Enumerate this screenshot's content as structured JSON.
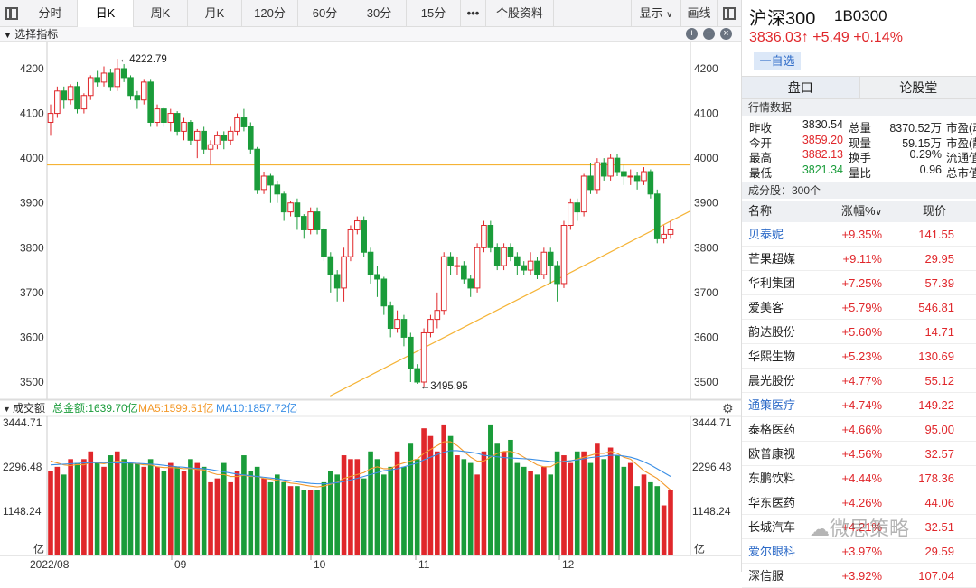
{
  "toolbar": {
    "tabs": [
      "分时",
      "日K",
      "周K",
      "月K",
      "120分",
      "60分",
      "30分",
      "15分"
    ],
    "more": "•••",
    "profile": "个股资料",
    "display": "显示",
    "draw": "画线"
  },
  "indicator_bar": {
    "label": "选择指标",
    "plus": "+",
    "minus": "−",
    "close": "×"
  },
  "volume_bar": {
    "label": "成交额",
    "total": "总金额:1639.70亿",
    "ma5": "MA5:1599.51亿",
    "ma10": "MA10:1857.72亿"
  },
  "chart_data": {
    "type": "candlestick",
    "price_axis": {
      "ticks": [
        "4200",
        "4100",
        "4000",
        "3900",
        "3800",
        "3700",
        "3600",
        "3500"
      ],
      "ylim": [
        3470,
        4250
      ]
    },
    "volume_axis": {
      "ticks": [
        "3444.71",
        "2296.48",
        "1148.24"
      ],
      "unit": "亿",
      "ylim": [
        0,
        3444.71
      ]
    },
    "x_ticks": [
      "2022/08",
      "09",
      "10",
      "11",
      "12"
    ],
    "annotations": {
      "high": "←4222.79",
      "low": "←3495.95"
    },
    "candles": [
      [
        4080,
        4100,
        4050,
        4120
      ],
      [
        4100,
        4150,
        4090,
        4160
      ],
      [
        4150,
        4130,
        4110,
        4160
      ],
      [
        4130,
        4160,
        4120,
        4165
      ],
      [
        4160,
        4110,
        4100,
        4170
      ],
      [
        4110,
        4140,
        4100,
        4145
      ],
      [
        4140,
        4180,
        4130,
        4185
      ],
      [
        4180,
        4170,
        4160,
        4195
      ],
      [
        4170,
        4190,
        4160,
        4205
      ],
      [
        4190,
        4160,
        4150,
        4200
      ],
      [
        4160,
        4200,
        4150,
        4222
      ],
      [
        4200,
        4180,
        4170,
        4210
      ],
      [
        4180,
        4140,
        4130,
        4185
      ],
      [
        4140,
        4130,
        4110,
        4150
      ],
      [
        4130,
        4170,
        4120,
        4175
      ],
      [
        4170,
        4080,
        4070,
        4175
      ],
      [
        4080,
        4110,
        4070,
        4120
      ],
      [
        4110,
        4080,
        4070,
        4115
      ],
      [
        4080,
        4100,
        4060,
        4110
      ],
      [
        4100,
        4060,
        4050,
        4105
      ],
      [
        4060,
        4080,
        4040,
        4090
      ],
      [
        4080,
        4040,
        4030,
        4085
      ],
      [
        4040,
        4060,
        4000,
        4065
      ],
      [
        4060,
        4020,
        4010,
        4070
      ],
      [
        4020,
        4030,
        3985,
        4040
      ],
      [
        4030,
        4050,
        4020,
        4060
      ],
      [
        4050,
        4040,
        4020,
        4060
      ],
      [
        4040,
        4060,
        4030,
        4070
      ],
      [
        4060,
        4090,
        4050,
        4100
      ],
      [
        4090,
        4070,
        4060,
        4110
      ],
      [
        4070,
        4020,
        4010,
        4080
      ],
      [
        4020,
        3930,
        3920,
        4025
      ],
      [
        3930,
        3960,
        3920,
        3970
      ],
      [
        3960,
        3940,
        3900,
        3965
      ],
      [
        3940,
        3920,
        3900,
        3950
      ],
      [
        3920,
        3880,
        3860,
        3925
      ],
      [
        3880,
        3900,
        3870,
        3905
      ],
      [
        3900,
        3870,
        3840,
        3910
      ],
      [
        3870,
        3840,
        3820,
        3875
      ],
      [
        3840,
        3880,
        3830,
        3890
      ],
      [
        3880,
        3840,
        3830,
        3890
      ],
      [
        3840,
        3780,
        3770,
        3845
      ],
      [
        3780,
        3740,
        3700,
        3790
      ],
      [
        3740,
        3710,
        3680,
        3750
      ],
      [
        3710,
        3780,
        3680,
        3800
      ],
      [
        3780,
        3840,
        3770,
        3850
      ],
      [
        3840,
        3860,
        3830,
        3870
      ],
      [
        3860,
        3790,
        3780,
        3870
      ],
      [
        3790,
        3740,
        3720,
        3800
      ],
      [
        3740,
        3730,
        3690,
        3760
      ],
      [
        3730,
        3670,
        3650,
        3735
      ],
      [
        3670,
        3620,
        3600,
        3680
      ],
      [
        3620,
        3640,
        3610,
        3660
      ],
      [
        3640,
        3600,
        3580,
        3650
      ],
      [
        3600,
        3530,
        3500,
        3610
      ],
      [
        3530,
        3500,
        3496,
        3540
      ],
      [
        3500,
        3610,
        3490,
        3620
      ],
      [
        3610,
        3640,
        3600,
        3650
      ],
      [
        3640,
        3660,
        3620,
        3700
      ],
      [
        3660,
        3780,
        3650,
        3790
      ],
      [
        3780,
        3760,
        3740,
        3790
      ],
      [
        3760,
        3760,
        3740,
        3780
      ],
      [
        3760,
        3730,
        3720,
        3770
      ],
      [
        3730,
        3710,
        3690,
        3740
      ],
      [
        3710,
        3800,
        3700,
        3810
      ],
      [
        3800,
        3850,
        3790,
        3860
      ],
      [
        3850,
        3800,
        3790,
        3860
      ],
      [
        3800,
        3760,
        3750,
        3810
      ],
      [
        3760,
        3800,
        3750,
        3810
      ],
      [
        3800,
        3780,
        3770,
        3810
      ],
      [
        3780,
        3760,
        3740,
        3790
      ],
      [
        3760,
        3750,
        3740,
        3770
      ],
      [
        3750,
        3770,
        3740,
        3790
      ],
      [
        3770,
        3740,
        3730,
        3780
      ],
      [
        3740,
        3790,
        3730,
        3800
      ],
      [
        3790,
        3760,
        3720,
        3800
      ],
      [
        3760,
        3720,
        3680,
        3770
      ],
      [
        3720,
        3850,
        3710,
        3860
      ],
      [
        3850,
        3900,
        3840,
        3910
      ],
      [
        3900,
        3880,
        3860,
        3910
      ],
      [
        3880,
        3960,
        3870,
        3965
      ],
      [
        3960,
        3930,
        3920,
        3990
      ],
      [
        3930,
        3990,
        3920,
        4000
      ],
      [
        3990,
        3960,
        3950,
        4000
      ],
      [
        3960,
        4000,
        3950,
        4010
      ],
      [
        4000,
        3970,
        3960,
        4010
      ],
      [
        3970,
        3960,
        3940,
        3985
      ],
      [
        3960,
        3960,
        3940,
        3975
      ],
      [
        3960,
        3950,
        3930,
        3970
      ],
      [
        3950,
        3970,
        3940,
        3980
      ],
      [
        3970,
        3920,
        3910,
        3975
      ],
      [
        3920,
        3820,
        3810,
        3930
      ],
      [
        3820,
        3830,
        3810,
        3850
      ],
      [
        3830,
        3840,
        3820,
        3860
      ]
    ],
    "volumes": [
      2200,
      2300,
      2100,
      2500,
      2400,
      2500,
      2700,
      2400,
      2300,
      2600,
      2700,
      2500,
      2400,
      2400,
      2300,
      2500,
      2300,
      2200,
      2400,
      2300,
      2200,
      2500,
      2400,
      2300,
      1900,
      2000,
      2400,
      1900,
      2200,
      2600,
      2200,
      2300,
      2000,
      1900,
      2100,
      1900,
      1800,
      1800,
      1700,
      1700,
      1700,
      1900,
      2200,
      2100,
      2600,
      2500,
      2500,
      2000,
      2700,
      2500,
      2100,
      2300,
      2700,
      2300,
      2900,
      2500,
      3300,
      3100,
      2700,
      3400,
      3100,
      2600,
      2500,
      2400,
      2100,
      2700,
      3400,
      2900,
      2700,
      3000,
      2400,
      2300,
      2200,
      2100,
      2300,
      2100,
      2700,
      2600,
      2400,
      2700,
      2700,
      2400,
      2900,
      2500,
      2800,
      2600,
      2300,
      2400,
      1800,
      2100,
      1900,
      1800,
      1300,
      1700
    ],
    "ma5_line": [
      2450,
      2400,
      2350,
      2330,
      2360,
      2350,
      2420,
      2400,
      2380,
      2420,
      2450,
      2430,
      2400,
      2380,
      2350,
      2350,
      2300,
      2280,
      2280,
      2270,
      2250,
      2260,
      2230,
      2220,
      2150,
      2100,
      2100,
      2050,
      2050,
      2080,
      2050,
      2050,
      2000,
      1980,
      1950,
      1920,
      1880,
      1860,
      1830,
      1800,
      1780,
      1800,
      1850,
      1900,
      2000,
      2050,
      2100,
      2150,
      2250,
      2300,
      2250,
      2250,
      2350,
      2400,
      2450,
      2500,
      2650,
      2750,
      2850,
      2950,
      2950,
      2850,
      2700,
      2550,
      2450,
      2450,
      2550,
      2650,
      2700,
      2700,
      2650,
      2550,
      2450,
      2350,
      2300,
      2300,
      2400,
      2450,
      2450,
      2500,
      2550,
      2600,
      2650,
      2650,
      2700,
      2650,
      2550,
      2500,
      2350,
      2200,
      2100,
      2000,
      1850,
      1700
    ],
    "ma10_line": [
      2350,
      2360,
      2370,
      2380,
      2390,
      2400,
      2410,
      2410,
      2410,
      2410,
      2400,
      2400,
      2400,
      2390,
      2380,
      2370,
      2360,
      2340,
      2320,
      2300,
      2290,
      2270,
      2260,
      2250,
      2230,
      2200,
      2170,
      2140,
      2110,
      2090,
      2070,
      2050,
      2030,
      2010,
      1990,
      1960,
      1940,
      1910,
      1890,
      1870,
      1860,
      1860,
      1870,
      1890,
      1920,
      1960,
      2000,
      2050,
      2100,
      2150,
      2200,
      2220,
      2250,
      2300,
      2350,
      2400,
      2480,
      2550,
      2620,
      2680,
      2720,
      2720,
      2700,
      2680,
      2650,
      2600,
      2580,
      2560,
      2540,
      2530,
      2520,
      2510,
      2500,
      2480,
      2460,
      2440,
      2430,
      2440,
      2460,
      2480,
      2510,
      2540,
      2560,
      2580,
      2600,
      2600,
      2580,
      2550,
      2500,
      2430,
      2350,
      2250,
      2150,
      2050
    ],
    "horizontal_line": 3985,
    "trend_line": {
      "from": [
        46,
        3469
      ],
      "to": [
        95,
        3862
      ]
    }
  },
  "colors": {
    "up": "#e0272b",
    "down": "#1a9c3a",
    "ma5": "#f39a2c",
    "ma10": "#3b8fe6",
    "guide": "#f5b335"
  },
  "right_panel": {
    "name": "沪深300",
    "code": "1B0300",
    "price": "3836.03↑ +5.49 +0.14%",
    "fav_button": "一自选",
    "tabs": [
      "盘口",
      "论股堂"
    ],
    "quote_header": "行情数据",
    "quote_rows": [
      [
        "昨收",
        "3830.54",
        "总量",
        "8370.52万",
        "市盈(动"
      ],
      [
        "今开",
        "3859.20",
        "现量",
        "59.15万",
        "市盈(静"
      ],
      [
        "最高",
        "3882.13",
        "换手",
        "0.29%",
        "流通值"
      ],
      [
        "最低",
        "3821.34",
        "量比",
        "0.96",
        "总市值"
      ]
    ],
    "components_header": "成分股：300个",
    "list_columns": [
      "名称",
      "涨幅%",
      "现价"
    ],
    "stocks": [
      [
        "贝泰妮",
        "+9.35%",
        "141.55"
      ],
      [
        "芒果超媒",
        "+9.11%",
        "29.95"
      ],
      [
        "华利集团",
        "+7.25%",
        "57.39"
      ],
      [
        "爱美客",
        "+5.79%",
        "546.81"
      ],
      [
        "韵达股份",
        "+5.60%",
        "14.71"
      ],
      [
        "华熙生物",
        "+5.23%",
        "130.69"
      ],
      [
        "晨光股份",
        "+4.77%",
        "55.12"
      ],
      [
        "通策医疗",
        "+4.74%",
        "149.22"
      ],
      [
        "泰格医药",
        "+4.66%",
        "95.00"
      ],
      [
        "欧普康视",
        "+4.56%",
        "32.57"
      ],
      [
        "东鹏饮料",
        "+4.44%",
        "178.36"
      ],
      [
        "华东医药",
        "+4.26%",
        "44.06"
      ],
      [
        "长城汽车",
        "+4.21%",
        "32.51"
      ],
      [
        "爱尔眼科",
        "+3.97%",
        "29.59"
      ]
    ],
    "partial_row": [
      "深信服",
      "+3.92%",
      "107.04"
    ],
    "watermark": "微思策略"
  }
}
